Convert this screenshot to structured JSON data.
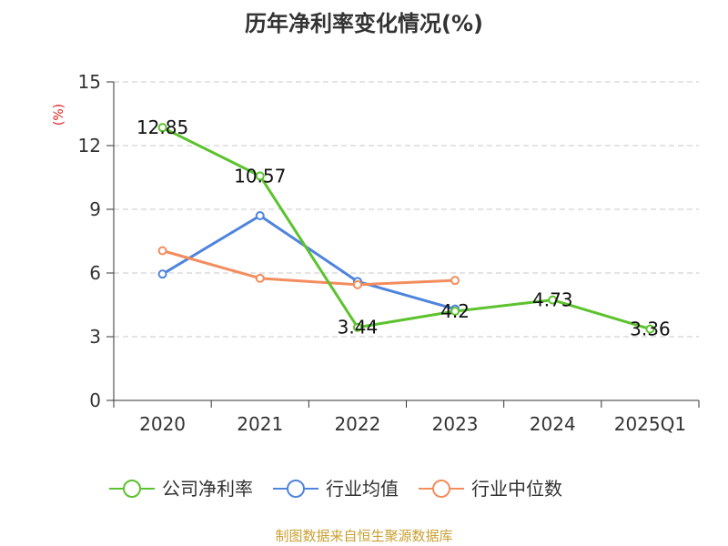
{
  "chart_data": {
    "type": "line",
    "title": "历年净利率变化情况(%)",
    "ylabel": "(%)",
    "xlabel": "",
    "categories": [
      "2020",
      "2021",
      "2022",
      "2023",
      "2024",
      "2025Q1"
    ],
    "ylim": [
      0,
      15
    ],
    "yticks": [
      0,
      3,
      6,
      9,
      12,
      15
    ],
    "grid": true,
    "legend_position": "bottom",
    "series": [
      {
        "name": "公司净利率",
        "color": "#5cc22d",
        "values": [
          12.85,
          10.57,
          3.44,
          4.2,
          4.73,
          3.36
        ],
        "labels": [
          "12.85",
          "10.57",
          "3.44",
          "4.2",
          "4.73",
          "3.36"
        ]
      },
      {
        "name": "行业均值",
        "color": "#4f84dd",
        "values": [
          5.95,
          8.7,
          5.6,
          4.3,
          null,
          null
        ]
      },
      {
        "name": "行业中位数",
        "color": "#f38d5e",
        "values": [
          7.05,
          5.75,
          5.45,
          5.65,
          null,
          null
        ]
      }
    ],
    "source": "制图数据来自恒生聚源数据库"
  }
}
